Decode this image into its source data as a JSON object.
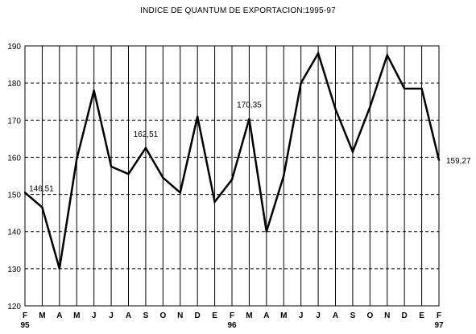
{
  "chart_data": {
    "type": "line",
    "title": "INDICE DE QUANTUM DE EXPORTACION:1995-97",
    "xlabel": "",
    "ylabel": "",
    "ylim": [
      120,
      190
    ],
    "y_ticks": [
      120,
      130,
      140,
      150,
      160,
      170,
      180,
      190
    ],
    "categories": [
      "F",
      "M",
      "A",
      "M",
      "J",
      "J",
      "A",
      "S",
      "O",
      "N",
      "D",
      "E",
      "F",
      "M",
      "A",
      "M",
      "J",
      "J",
      "A",
      "S",
      "O",
      "N",
      "D",
      "E",
      "F"
    ],
    "year_labels": [
      {
        "index": 0,
        "label": "95"
      },
      {
        "index": 12,
        "label": "96"
      },
      {
        "index": 24,
        "label": "97"
      }
    ],
    "series": [
      {
        "values": [
          150.5,
          146.51,
          130.0,
          159.5,
          178.0,
          157.5,
          155.5,
          162.51,
          154.5,
          150.5,
          171.0,
          148.0,
          154.0,
          170.35,
          140.0,
          155.0,
          180.0,
          188.0,
          173.0,
          161.5,
          173.5,
          187.5,
          178.5,
          178.5,
          159.27
        ]
      }
    ],
    "data_labels": [
      {
        "index": 1,
        "text": "146,51"
      },
      {
        "index": 7,
        "text": "162,51"
      },
      {
        "index": 13,
        "text": "170,35"
      },
      {
        "index": 24,
        "text": "159,27"
      }
    ],
    "grid": {
      "vertical": true,
      "horizontal_dashed": true
    },
    "colors": {
      "line": "#000000",
      "grid": "#000000",
      "background": "#ffffff"
    }
  }
}
